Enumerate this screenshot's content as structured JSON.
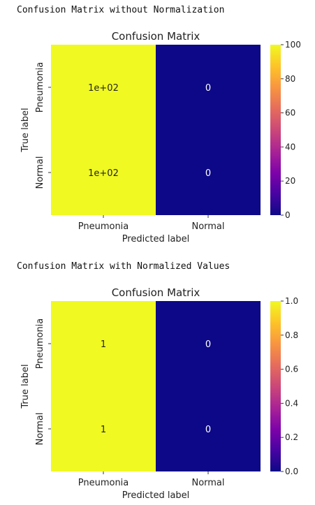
{
  "captions": {
    "first": "Confusion Matrix without Normalization",
    "second": "Confusion Matrix with Normalized Values"
  },
  "colormap": "plasma",
  "colors": {
    "high": "#f0f921",
    "low": "#0d0887"
  },
  "chart_data": [
    {
      "type": "heatmap",
      "title": "Confusion Matrix",
      "xlabel": "Predicted label",
      "ylabel": "True label",
      "x_categories": [
        "Pneumonia",
        "Normal"
      ],
      "y_categories": [
        "Pneumonia",
        "Normal"
      ],
      "values": [
        [
          100,
          0
        ],
        [
          100,
          0
        ]
      ],
      "annotations": [
        [
          "1e+02",
          "0"
        ],
        [
          "1e+02",
          "0"
        ]
      ],
      "colorbar": {
        "range": [
          0,
          100
        ],
        "ticks": [
          "0",
          "20",
          "40",
          "60",
          "80",
          "100"
        ]
      }
    },
    {
      "type": "heatmap",
      "title": "Confusion Matrix",
      "xlabel": "Predicted label",
      "ylabel": "True label",
      "x_categories": [
        "Pneumonia",
        "Normal"
      ],
      "y_categories": [
        "Pneumonia",
        "Normal"
      ],
      "values": [
        [
          1,
          0
        ],
        [
          1,
          0
        ]
      ],
      "annotations": [
        [
          "1",
          "0"
        ],
        [
          "1",
          "0"
        ]
      ],
      "colorbar": {
        "range": [
          0,
          1
        ],
        "ticks": [
          "0.0",
          "0.2",
          "0.4",
          "0.6",
          "0.8",
          "1.0"
        ]
      }
    }
  ]
}
